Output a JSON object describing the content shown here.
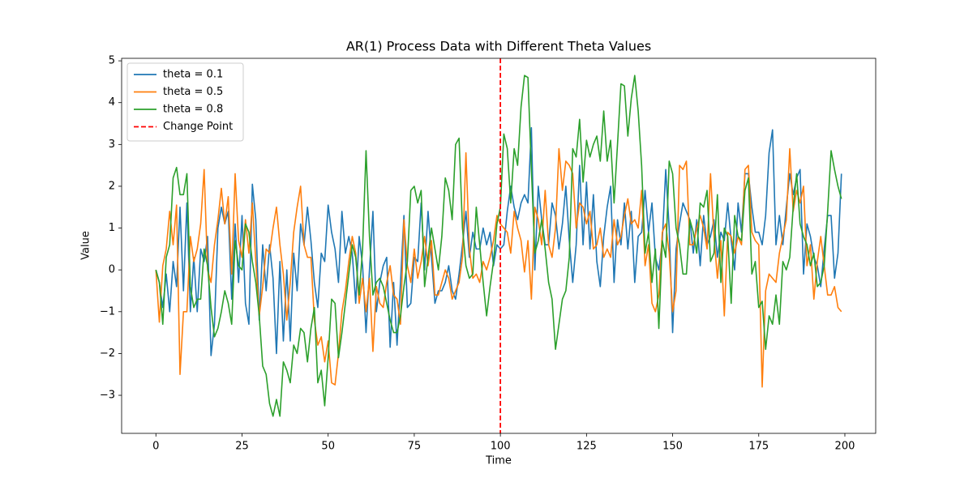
{
  "chart_data": {
    "type": "line",
    "title": "AR(1) Process Data with Different Theta Values",
    "xlabel": "Time",
    "ylabel": "Value",
    "x": [
      0,
      1,
      2,
      3,
      4,
      5,
      6,
      7,
      8,
      9,
      10,
      11,
      12,
      13,
      14,
      15,
      16,
      17,
      18,
      19,
      20,
      21,
      22,
      23,
      24,
      25,
      26,
      27,
      28,
      29,
      30,
      31,
      32,
      33,
      34,
      35,
      36,
      37,
      38,
      39,
      40,
      41,
      42,
      43,
      44,
      45,
      46,
      47,
      48,
      49,
      50,
      51,
      52,
      53,
      54,
      55,
      56,
      57,
      58,
      59,
      60,
      61,
      62,
      63,
      64,
      65,
      66,
      67,
      68,
      69,
      70,
      71,
      72,
      73,
      74,
      75,
      76,
      77,
      78,
      79,
      80,
      81,
      82,
      83,
      84,
      85,
      86,
      87,
      88,
      89,
      90,
      91,
      92,
      93,
      94,
      95,
      96,
      97,
      98,
      99,
      100,
      101,
      102,
      103,
      104,
      105,
      106,
      107,
      108,
      109,
      110,
      111,
      112,
      113,
      114,
      115,
      116,
      117,
      118,
      119,
      120,
      121,
      122,
      123,
      124,
      125,
      126,
      127,
      128,
      129,
      130,
      131,
      132,
      133,
      134,
      135,
      136,
      137,
      138,
      139,
      140,
      141,
      142,
      143,
      144,
      145,
      146,
      147,
      148,
      149,
      150,
      151,
      152,
      153,
      154,
      155,
      156,
      157,
      158,
      159,
      160,
      161,
      162,
      163,
      164,
      165,
      166,
      167,
      168,
      169,
      170,
      171,
      172,
      173,
      174,
      175,
      176,
      177,
      178,
      179,
      180,
      181,
      182,
      183,
      184,
      185,
      186,
      187,
      188,
      189,
      190,
      191,
      192,
      193,
      194,
      195,
      196,
      197,
      198,
      199
    ],
    "series": [
      {
        "name": "theta = 0.1",
        "color": "#1f77b4",
        "values": [
          0,
          -0.3,
          -0.9,
          -0.1,
          -1.0,
          0.2,
          -0.4,
          1.5,
          -0.5,
          1.6,
          -1.0,
          0.3,
          -1.0,
          0.5,
          0.2,
          0.8,
          -2.05,
          -1.3,
          1.0,
          1.5,
          1.1,
          1.4,
          -0.7,
          1.1,
          -0.3,
          1.3,
          -0.8,
          -1.3,
          2.05,
          1.2,
          -1.2,
          0.6,
          -0.5,
          0.6,
          -0.2,
          -2.0,
          0.2,
          -1.7,
          0.0,
          -1.7,
          0.4,
          -0.5,
          1.1,
          0.6,
          1.5,
          0.7,
          -0.3,
          -0.9,
          0.4,
          0.2,
          1.55,
          0.9,
          0.5,
          -0.3,
          1.4,
          0.4,
          0.8,
          0.4,
          -0.8,
          0.8,
          0.1,
          -1.5,
          0.0,
          1.4,
          -1.0,
          -0.3,
          0.1,
          0.3,
          -1.85,
          -0.3,
          -1.8,
          -0.3,
          1.3,
          -0.9,
          -0.8,
          0.3,
          0.2,
          1.6,
          0.0,
          1.4,
          0.3,
          -0.8,
          -0.5,
          -0.5,
          -0.3,
          0.1,
          -0.5,
          -0.7,
          -0.1,
          0.6,
          1.4,
          0.3,
          0.9,
          0.5,
          0.5,
          1.0,
          0.6,
          0.9,
          0.1,
          0.6,
          0.5,
          0.6,
          1.4,
          2.0,
          1.5,
          1.2,
          1.6,
          1.8,
          1.6,
          3.4,
          0.0,
          2.0,
          1.2,
          0.6,
          0.6,
          1.6,
          1.3,
          0.5,
          1.1,
          2.0,
          0.7,
          -0.3,
          0.6,
          2.5,
          0.6,
          2.1,
          0.5,
          1.8,
          0.2,
          -0.4,
          0.8,
          1.5,
          2.0,
          -0.3,
          1.2,
          0.6,
          1.6,
          0.5,
          1.4,
          -0.3,
          0.8,
          0.9,
          1.9,
          0.9,
          1.6,
          0.3,
          0.0,
          0.7,
          2.4,
          1.0,
          -1.5,
          0.5,
          1.1,
          1.6,
          1.4,
          1.2,
          0.4,
          1.2,
          0.1,
          1.3,
          0.6,
          0.8,
          1.2,
          0.3,
          0.9,
          0.7,
          1.6,
          0.7,
          0.0,
          1.6,
          0.9,
          2.3,
          2.3,
          1.5,
          0.9,
          0.9,
          0.6,
          1.3,
          2.8,
          3.35,
          0.6,
          1.3,
          0.6,
          1.5,
          2.3,
          1.8,
          2.2,
          2.4,
          -0.1,
          1.1,
          0.8,
          0.3,
          0.1,
          -0.4,
          0.5,
          1.3,
          1.3,
          -0.2,
          0.4,
          2.3
        ]
      },
      {
        "name": "theta = 0.5",
        "color": "#ff7f0e",
        "values": [
          0,
          -1.25,
          0.1,
          0.5,
          1.4,
          0.6,
          1.55,
          -2.5,
          -1.0,
          -1.0,
          0.8,
          0.2,
          0.5,
          1.1,
          2.4,
          0.0,
          -0.3,
          0.6,
          1.2,
          1.95,
          1.1,
          1.75,
          -0.1,
          2.3,
          0.7,
          0.3,
          1.2,
          0.4,
          1.6,
          0.2,
          -1.1,
          -0.4,
          0.5,
          0.4,
          1.0,
          1.5,
          0.6,
          -0.1,
          -1.2,
          -0.3,
          0.9,
          1.5,
          2.0,
          0.6,
          0.3,
          0.3,
          -1.2,
          -1.8,
          -1.6,
          -2.2,
          -1.7,
          -2.7,
          -2.75,
          -2.0,
          -1.0,
          -0.5,
          0.2,
          0.8,
          0.4,
          -0.8,
          -0.2,
          -1.0,
          -0.2,
          -1.95,
          -0.4,
          -0.8,
          -0.9,
          -0.3,
          0.1,
          -0.6,
          -0.7,
          -1.3,
          1.2,
          0.1,
          -0.3,
          0.5,
          -0.2,
          0.2,
          0.8,
          0.1,
          0.7,
          -0.6,
          -0.6,
          -0.3,
          0.0,
          -0.2,
          -0.7,
          -0.5,
          -0.3,
          0.3,
          2.8,
          0.5,
          -0.2,
          -0.1,
          -0.3,
          0.2,
          0.0,
          0.3,
          0.7,
          1.3,
          1.1,
          1.0,
          0.9,
          0.4,
          1.4,
          1.0,
          0.7,
          -0.05,
          0.7,
          -0.7,
          1.5,
          1.2,
          0.6,
          1.9,
          0.6,
          0.3,
          1.0,
          2.9,
          1.9,
          2.6,
          2.5,
          2.3,
          1.0,
          1.6,
          1.5,
          1.1,
          1.4,
          0.5,
          0.6,
          1.0,
          0.3,
          0.5,
          0.3,
          1.2,
          0.6,
          0.8,
          1.3,
          1.7,
          1.1,
          1.2,
          1.0,
          1.9,
          0.1,
          0.6,
          -0.8,
          -1.0,
          -0.6,
          0.9,
          1.1,
          0.4,
          -1.0,
          -0.5,
          2.5,
          2.4,
          2.6,
          0.6,
          0.6,
          1.0,
          1.3,
          1.0,
          0.5,
          2.3,
          0.8,
          -0.2,
          0.7,
          -1.1,
          0.9,
          0.8,
          0.4,
          0.8,
          0.6,
          2.4,
          2.5,
          0.9,
          0.7,
          0.6,
          -2.8,
          -0.5,
          -0.1,
          -0.2,
          -0.3,
          0.4,
          0.8,
          1.2,
          2.9,
          1.4,
          1.9,
          1.6,
          2.0,
          0.1,
          0.6,
          -0.7,
          0.2,
          0.8,
          0.1,
          -0.6,
          -0.6,
          -0.4,
          -0.9,
          -1.0
        ]
      },
      {
        "name": "theta = 0.8",
        "color": "#2ca02c",
        "values": [
          0,
          -0.3,
          -1.3,
          0.3,
          0.6,
          2.2,
          2.45,
          1.8,
          1.8,
          2.3,
          -0.4,
          -0.9,
          -0.7,
          -0.7,
          0.5,
          0.1,
          -0.9,
          -1.6,
          -1.4,
          -1.0,
          -0.5,
          -0.8,
          -1.3,
          0.7,
          0.1,
          0.0,
          1.1,
          0.9,
          0.2,
          -0.3,
          -1.1,
          -2.3,
          -2.5,
          -3.2,
          -3.5,
          -3.1,
          -3.5,
          -2.2,
          -2.4,
          -2.7,
          -1.8,
          -2.0,
          -1.4,
          -1.5,
          -2.2,
          -1.4,
          -0.9,
          -2.7,
          -2.4,
          -3.25,
          -2.1,
          -0.7,
          -0.8,
          -2.1,
          -1.5,
          -0.8,
          -0.1,
          0.6,
          0.3,
          -0.6,
          0.5,
          2.85,
          0.8,
          -0.6,
          -0.3,
          -0.2,
          -0.4,
          -0.8,
          -1.2,
          -1.5,
          -1.5,
          -1.1,
          -0.4,
          0.2,
          1.9,
          2.0,
          1.6,
          1.9,
          -0.4,
          0.3,
          1.0,
          0.5,
          0.0,
          0.8,
          2.2,
          1.9,
          1.2,
          3.0,
          3.15,
          1.0,
          0.1,
          -0.2,
          -0.1,
          1.5,
          0.6,
          -0.3,
          -1.1,
          -0.4,
          0.2,
          1.1,
          1.5,
          3.25,
          2.9,
          1.6,
          2.9,
          2.5,
          3.9,
          4.65,
          4.6,
          2.4,
          0.4,
          0.7,
          1.2,
          0.5,
          -0.3,
          -0.7,
          -1.9,
          -1.3,
          -0.7,
          -0.5,
          0.3,
          2.9,
          2.7,
          3.6,
          2.1,
          3.1,
          2.7,
          3.0,
          3.2,
          2.6,
          3.8,
          2.6,
          3.1,
          1.6,
          3.0,
          4.45,
          4.4,
          3.2,
          4.1,
          4.65,
          3.8,
          2.5,
          0.4,
          0.9,
          -0.3,
          0.5,
          -1.4,
          0.7,
          0.3,
          2.6,
          2.3,
          1.0,
          0.6,
          -0.1,
          -0.1,
          1.2,
          0.9,
          0.4,
          1.6,
          1.5,
          1.9,
          0.2,
          0.4,
          1.8,
          -0.3,
          1.0,
          0.8,
          -0.8,
          1.3,
          0.8,
          0.7,
          1.9,
          2.2,
          -0.1,
          0.2,
          -0.9,
          -0.75,
          -1.9,
          -1.1,
          -1.3,
          -0.6,
          -1.3,
          0.2,
          0.0,
          0.3,
          1.5,
          2.3,
          1.1,
          0.8,
          0.6,
          0.1,
          0.4,
          -0.4,
          -0.3,
          0.1,
          1.4,
          2.85,
          2.4,
          2.0,
          1.7
        ]
      }
    ],
    "vlines": [
      {
        "x": 100,
        "name": "Change Point",
        "color": "red",
        "style": "dashed"
      }
    ],
    "xlim": [
      -9.95,
      208.95
    ],
    "ylim": [
      -3.91,
      5.06
    ],
    "xticks": [
      0,
      25,
      50,
      75,
      100,
      125,
      150,
      175,
      200
    ],
    "yticks": [
      {
        "value": -3,
        "label": "−3"
      },
      {
        "value": -2,
        "label": "−2"
      },
      {
        "value": -1,
        "label": "−1"
      },
      0,
      1,
      2,
      3,
      4,
      5
    ],
    "legend": "upper left",
    "grid": false
  }
}
